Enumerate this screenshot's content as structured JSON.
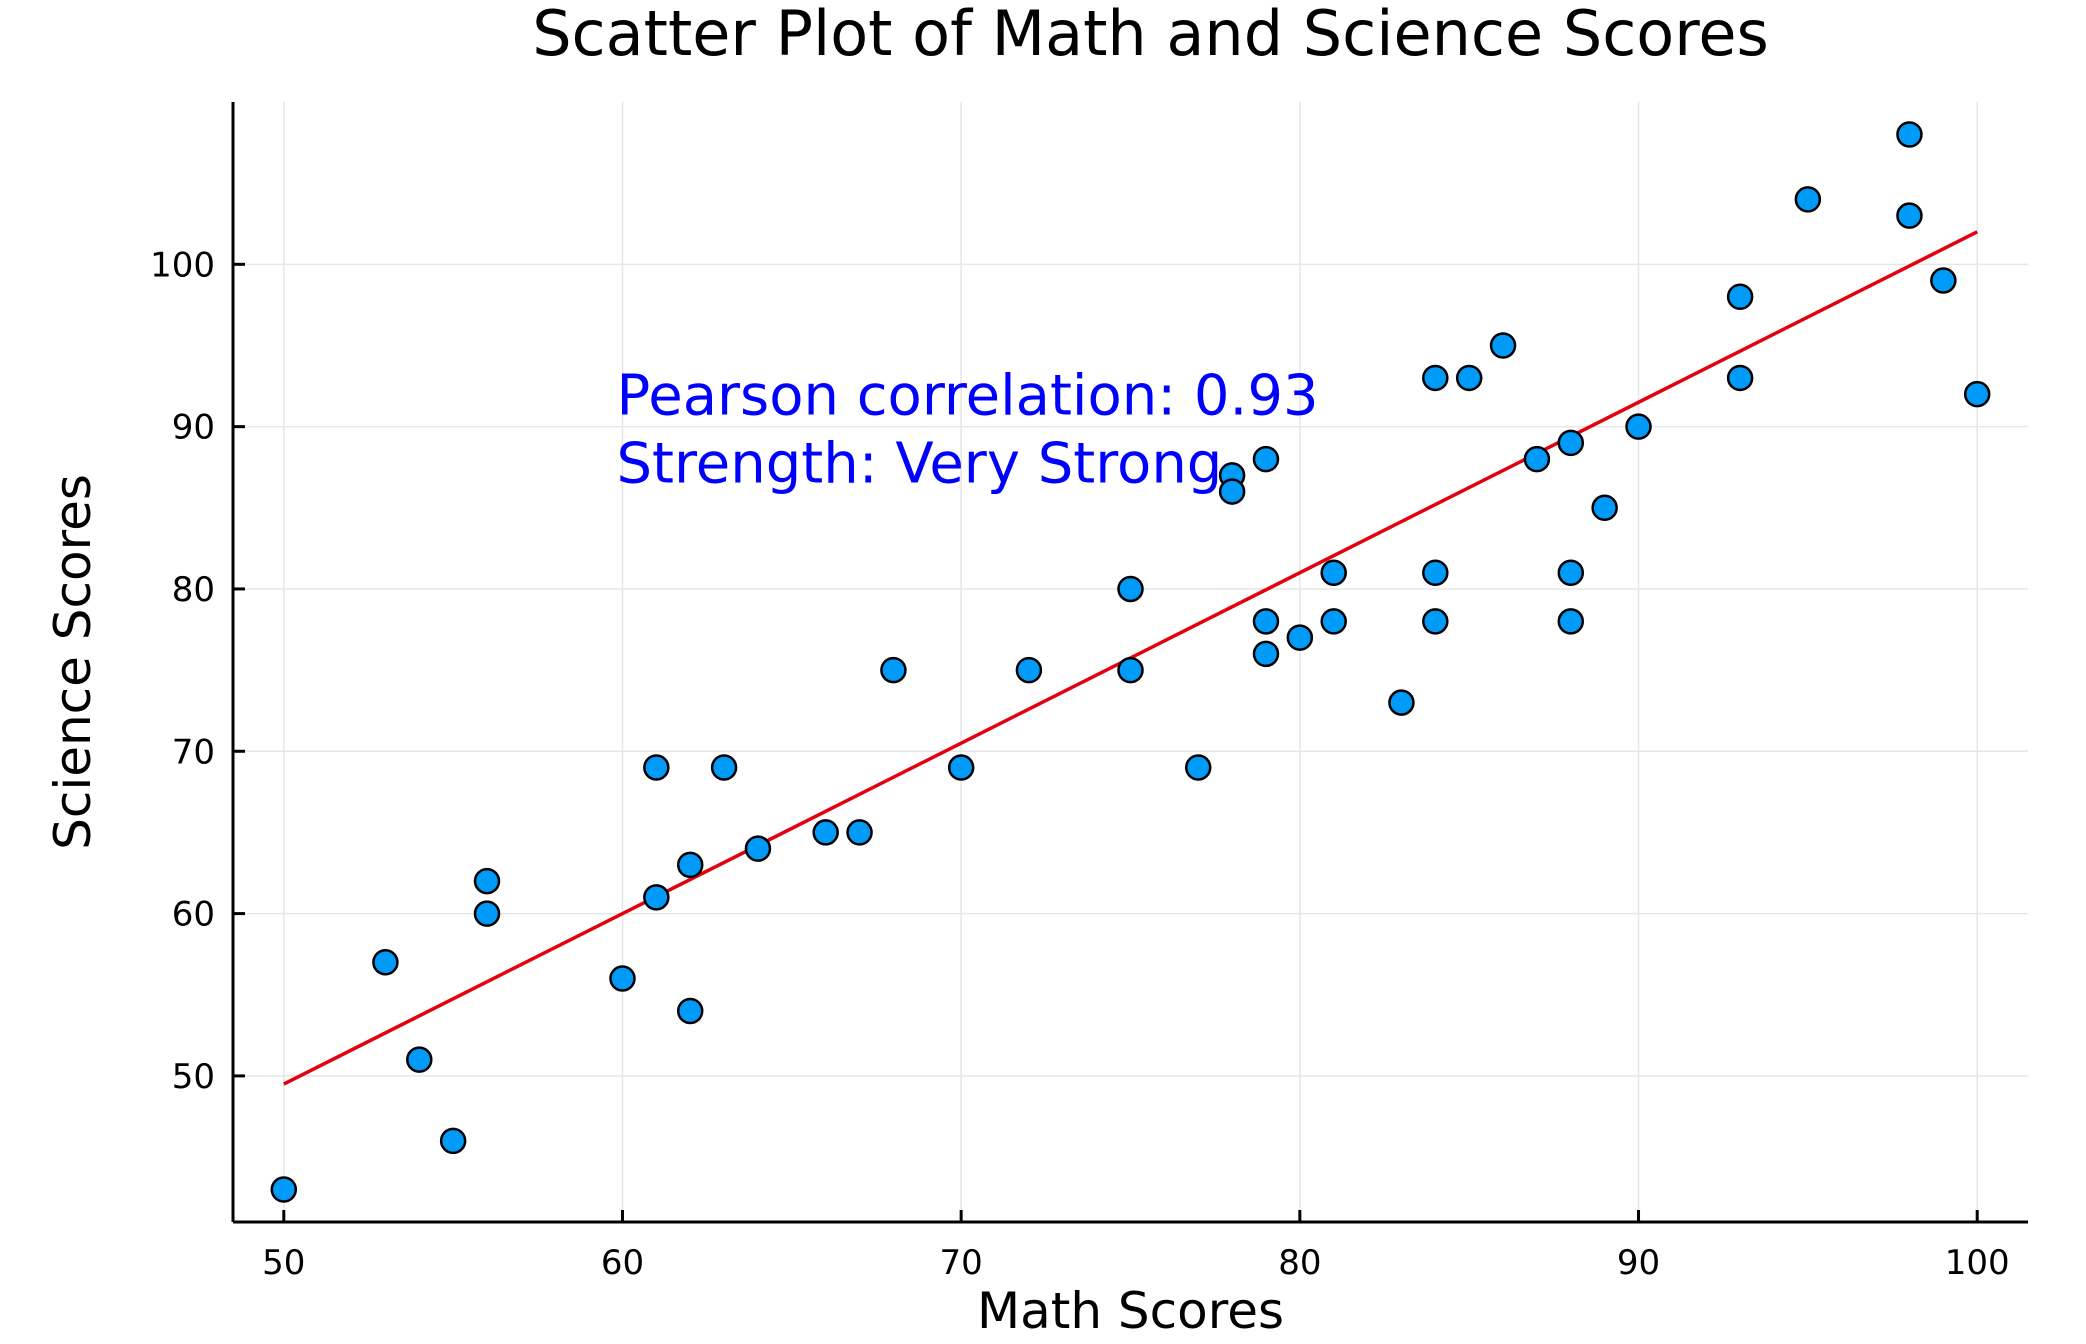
{
  "chart_data": {
    "type": "scatter",
    "title": "Scatter Plot of Math and Science Scores",
    "xlabel": "Math Scores",
    "ylabel": "Science Scores",
    "xlim": [
      48.5,
      101.5
    ],
    "ylim": [
      41,
      110
    ],
    "xticks": [
      50,
      60,
      70,
      80,
      90,
      100
    ],
    "yticks": [
      50,
      60,
      70,
      80,
      90,
      100
    ],
    "grid": true,
    "legend": "none",
    "colors": {
      "points": "#009af9",
      "fit_line": "#e3000f",
      "annotation": "#0000ff"
    },
    "points": [
      {
        "x": 50,
        "y": 43
      },
      {
        "x": 53,
        "y": 57
      },
      {
        "x": 54,
        "y": 51
      },
      {
        "x": 55,
        "y": 46
      },
      {
        "x": 56,
        "y": 62
      },
      {
        "x": 56,
        "y": 60
      },
      {
        "x": 60,
        "y": 56
      },
      {
        "x": 61,
        "y": 69
      },
      {
        "x": 61,
        "y": 61
      },
      {
        "x": 62,
        "y": 63
      },
      {
        "x": 62,
        "y": 54
      },
      {
        "x": 63,
        "y": 69
      },
      {
        "x": 64,
        "y": 64
      },
      {
        "x": 66,
        "y": 65
      },
      {
        "x": 67,
        "y": 65
      },
      {
        "x": 68,
        "y": 75
      },
      {
        "x": 70,
        "y": 69
      },
      {
        "x": 72,
        "y": 75
      },
      {
        "x": 75,
        "y": 80
      },
      {
        "x": 75,
        "y": 75
      },
      {
        "x": 77,
        "y": 69
      },
      {
        "x": 78,
        "y": 87
      },
      {
        "x": 78,
        "y": 86
      },
      {
        "x": 79,
        "y": 88
      },
      {
        "x": 79,
        "y": 78
      },
      {
        "x": 79,
        "y": 76
      },
      {
        "x": 80,
        "y": 77
      },
      {
        "x": 81,
        "y": 81
      },
      {
        "x": 81,
        "y": 78
      },
      {
        "x": 83,
        "y": 73
      },
      {
        "x": 84,
        "y": 93
      },
      {
        "x": 84,
        "y": 81
      },
      {
        "x": 84,
        "y": 78
      },
      {
        "x": 85,
        "y": 93
      },
      {
        "x": 86,
        "y": 95
      },
      {
        "x": 87,
        "y": 88
      },
      {
        "x": 88,
        "y": 89
      },
      {
        "x": 88,
        "y": 81
      },
      {
        "x": 88,
        "y": 78
      },
      {
        "x": 89,
        "y": 85
      },
      {
        "x": 90,
        "y": 90
      },
      {
        "x": 93,
        "y": 98
      },
      {
        "x": 93,
        "y": 93
      },
      {
        "x": 95,
        "y": 104
      },
      {
        "x": 98,
        "y": 108
      },
      {
        "x": 98,
        "y": 103
      },
      {
        "x": 99,
        "y": 99
      },
      {
        "x": 100,
        "y": 92
      }
    ],
    "fit_line": {
      "x": [
        50,
        100
      ],
      "y": [
        49.5,
        102
      ]
    },
    "annotation": {
      "line1": "Pearson correlation: 0.93",
      "line2": "Strength: Very Strong",
      "anchor": {
        "x": 60,
        "y": 90
      }
    }
  }
}
